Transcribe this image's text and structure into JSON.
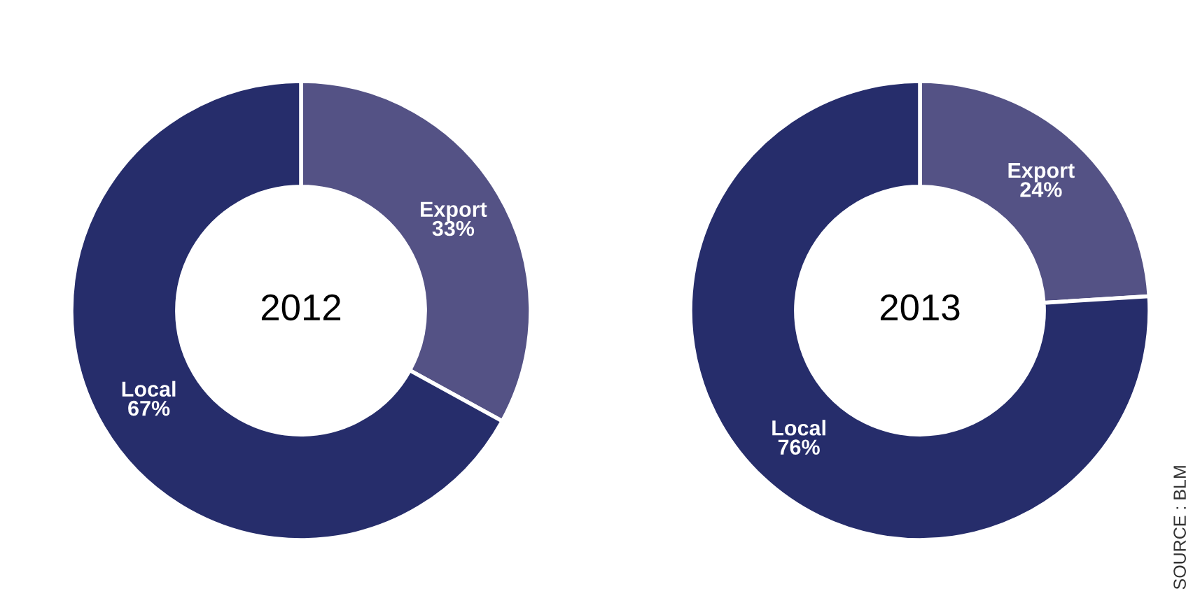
{
  "chart_data": [
    {
      "type": "donut",
      "title": "2012",
      "categories": [
        "Export",
        "Local"
      ],
      "values": [
        33,
        67
      ],
      "colors": [
        "#545285",
        "#262d6b"
      ],
      "value_labels": [
        "33%",
        "67%"
      ],
      "legend": false
    },
    {
      "type": "donut",
      "title": "2013",
      "categories": [
        "Export",
        "Local"
      ],
      "values": [
        24,
        76
      ],
      "colors": [
        "#545285",
        "#262d6b"
      ],
      "value_labels": [
        "24%",
        "76%"
      ],
      "legend": false,
      "annotations": [
        "SOURCE : BLM"
      ]
    }
  ]
}
